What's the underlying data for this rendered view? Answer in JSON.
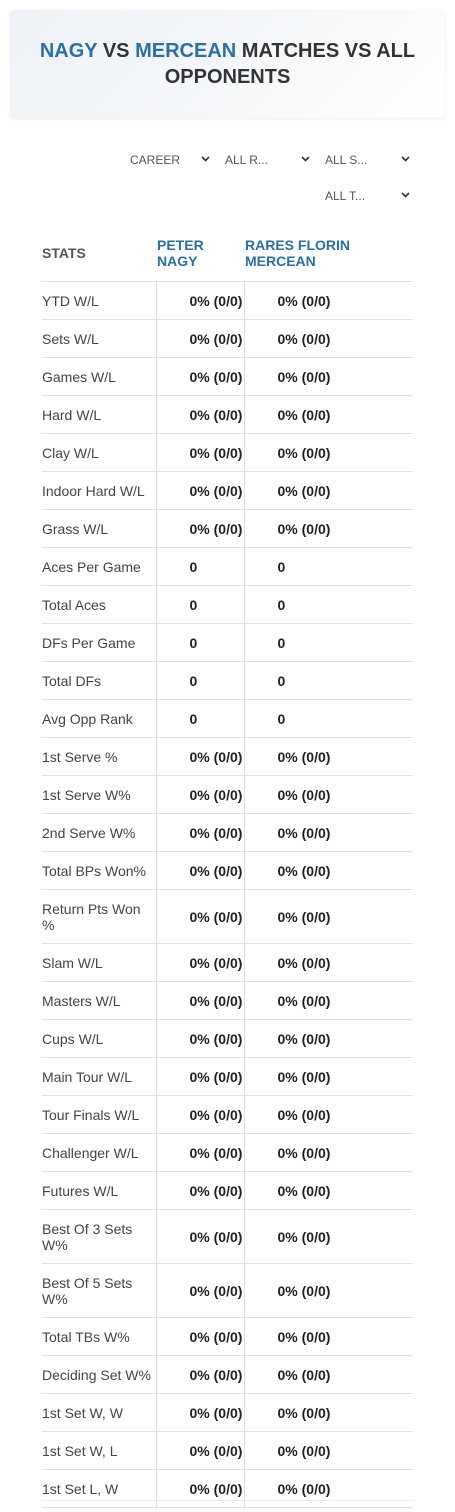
{
  "header": {
    "title": {
      "player1": "NAGY",
      "vs": "VS",
      "player2": "MERCEAN",
      "rest": "MATCHES VS ALL OPPONENTS"
    }
  },
  "filters": [
    "CAREER",
    "ALL R...",
    "ALL S...",
    "ALL T..."
  ],
  "table": {
    "columns": [
      "STATS",
      "PETER NAGY",
      "RARES FLORIN MERCEAN"
    ],
    "rows": [
      [
        "YTD W/L",
        "0% (0/0)",
        "0% (0/0)"
      ],
      [
        "Sets W/L",
        "0% (0/0)",
        "0% (0/0)"
      ],
      [
        "Games W/L",
        "0% (0/0)",
        "0% (0/0)"
      ],
      [
        "Hard W/L",
        "0% (0/0)",
        "0% (0/0)"
      ],
      [
        "Clay W/L",
        "0% (0/0)",
        "0% (0/0)"
      ],
      [
        "Indoor Hard W/L",
        "0% (0/0)",
        "0% (0/0)"
      ],
      [
        "Grass W/L",
        "0% (0/0)",
        "0% (0/0)"
      ],
      [
        "Aces Per Game",
        0,
        0
      ],
      [
        "Total Aces",
        0,
        0
      ],
      [
        "DFs Per Game",
        0,
        0
      ],
      [
        "Total DFs",
        0,
        0
      ],
      [
        "Avg Opp Rank",
        0,
        0
      ],
      [
        "1st Serve %",
        "0% (0/0)",
        "0% (0/0)"
      ],
      [
        "1st Serve W%",
        "0% (0/0)",
        "0% (0/0)"
      ],
      [
        "2nd Serve W%",
        "0% (0/0)",
        "0% (0/0)"
      ],
      [
        "Total BPs Won%",
        "0% (0/0)",
        "0% (0/0)"
      ],
      [
        "Return Pts Won %",
        "0% (0/0)",
        "0% (0/0)"
      ],
      [
        "Slam W/L",
        "0% (0/0)",
        "0% (0/0)"
      ],
      [
        "Masters W/L",
        "0% (0/0)",
        "0% (0/0)"
      ],
      [
        "Cups W/L",
        "0% (0/0)",
        "0% (0/0)"
      ],
      [
        "Main Tour W/L",
        "0% (0/0)",
        "0% (0/0)"
      ],
      [
        "Tour Finals W/L",
        "0% (0/0)",
        "0% (0/0)"
      ],
      [
        "Challenger W/L",
        "0% (0/0)",
        "0% (0/0)"
      ],
      [
        "Futures W/L",
        "0% (0/0)",
        "0% (0/0)"
      ],
      [
        "Best Of 3 Sets W%",
        "0% (0/0)",
        "0% (0/0)"
      ],
      [
        "Best Of 5 Sets W%",
        "0% (0/0)",
        "0% (0/0)"
      ],
      [
        "Total TBs W%",
        "0% (0/0)",
        "0% (0/0)"
      ],
      [
        "Deciding Set W%",
        "0% (0/0)",
        "0% (0/0)"
      ],
      [
        "1st Set W, W",
        "0% (0/0)",
        "0% (0/0)"
      ],
      [
        "1st Set W, L",
        "0% (0/0)",
        "0% (0/0)"
      ],
      [
        "1st Set L, W",
        "0% (0/0)",
        "0% (0/0)"
      ]
    ]
  }
}
